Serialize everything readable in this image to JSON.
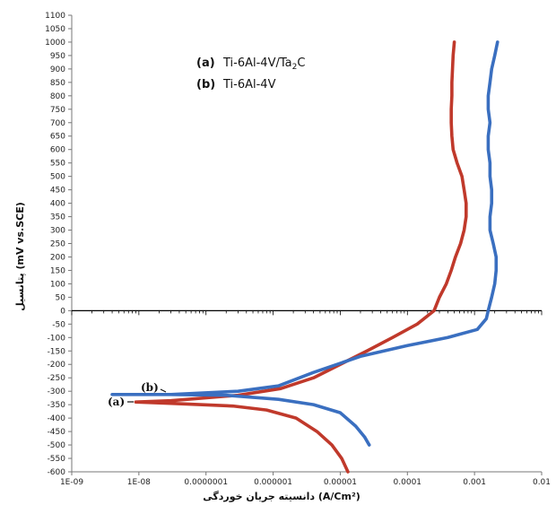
{
  "chart_data": {
    "type": "line",
    "title": "",
    "xlabel": "دانسیته جریان خوردگی (A/Cm²)",
    "ylabel": "پتانسیل (mV vs.SCE)",
    "x_scale": "log",
    "xlim": [
      1e-09,
      0.01
    ],
    "ylim": [
      -600,
      1100
    ],
    "x_ticks": [
      1e-09,
      1e-08,
      1e-07,
      1e-06,
      1e-05,
      0.0001,
      0.001,
      0.01
    ],
    "x_tick_labels": [
      "1E-09",
      "1E-08",
      "0.0000001",
      "0.000001",
      "0.00001",
      "0.0001",
      "0.001",
      "0.01"
    ],
    "y_ticks": [
      -600,
      -550,
      -500,
      -450,
      -400,
      -350,
      -300,
      -250,
      -200,
      -150,
      -100,
      -50,
      0,
      50,
      100,
      150,
      200,
      250,
      300,
      350,
      400,
      450,
      500,
      550,
      600,
      650,
      700,
      750,
      800,
      850,
      900,
      950,
      1000,
      1050,
      1100
    ],
    "grid": false,
    "legend": {
      "position": "top-left",
      "entries": [
        {
          "letter": "(a)",
          "text": "Ti-6Al-4V/Ta",
          "sub": "2",
          "suffix": "C"
        },
        {
          "letter": "(b)",
          "text": "Ti-6Al-4V",
          "sub": "",
          "suffix": ""
        }
      ]
    },
    "annotations": [
      {
        "text": "(a)",
        "series": 0
      },
      {
        "text": "(b)",
        "series": 1
      }
    ],
    "series": [
      {
        "name": "(a) Ti-6Al-4V/Ta2C",
        "color": "#c0392b",
        "points": [
          [
            0.0005,
            1000
          ],
          [
            0.00048,
            950
          ],
          [
            0.00047,
            900
          ],
          [
            0.00046,
            850
          ],
          [
            0.00046,
            800
          ],
          [
            0.00045,
            750
          ],
          [
            0.00045,
            700
          ],
          [
            0.00046,
            650
          ],
          [
            0.00048,
            600
          ],
          [
            0.00055,
            550
          ],
          [
            0.00065,
            500
          ],
          [
            0.0007,
            450
          ],
          [
            0.00075,
            400
          ],
          [
            0.00075,
            350
          ],
          [
            0.0007,
            300
          ],
          [
            0.00062,
            250
          ],
          [
            0.00052,
            200
          ],
          [
            0.00045,
            150
          ],
          [
            0.00038,
            100
          ],
          [
            0.0003,
            50
          ],
          [
            0.00025,
            0
          ],
          [
            0.00014,
            -50
          ],
          [
            6e-05,
            -100
          ],
          [
            2.5e-05,
            -150
          ],
          [
            1e-05,
            -200
          ],
          [
            4e-06,
            -250
          ],
          [
            1.3e-06,
            -290
          ],
          [
            3e-07,
            -315
          ],
          [
            3e-08,
            -335
          ],
          [
            9e-09,
            -340
          ],
          [
            3e-08,
            -345
          ],
          [
            2.5e-07,
            -355
          ],
          [
            8e-07,
            -370
          ],
          [
            2.2e-06,
            -400
          ],
          [
            4.5e-06,
            -450
          ],
          [
            7.5e-06,
            -500
          ],
          [
            1.05e-05,
            -550
          ],
          [
            1.3e-05,
            -600
          ]
        ]
      },
      {
        "name": "(b) Ti-6Al-4V",
        "color": "#3a6fc0",
        "points": [
          [
            0.0022,
            1000
          ],
          [
            0.002,
            950
          ],
          [
            0.0018,
            900
          ],
          [
            0.0017,
            850
          ],
          [
            0.0016,
            800
          ],
          [
            0.0016,
            750
          ],
          [
            0.0017,
            700
          ],
          [
            0.0016,
            650
          ],
          [
            0.0016,
            600
          ],
          [
            0.0017,
            550
          ],
          [
            0.0017,
            500
          ],
          [
            0.0018,
            450
          ],
          [
            0.0018,
            400
          ],
          [
            0.0017,
            350
          ],
          [
            0.0017,
            300
          ],
          [
            0.0019,
            250
          ],
          [
            0.0021,
            200
          ],
          [
            0.0021,
            150
          ],
          [
            0.002,
            100
          ],
          [
            0.0018,
            50
          ],
          [
            0.0016,
            0
          ],
          [
            0.0015,
            -30
          ],
          [
            0.0011,
            -70
          ],
          [
            0.0004,
            -100
          ],
          [
            0.0001,
            -130
          ],
          [
            2e-05,
            -170
          ],
          [
            4e-06,
            -230
          ],
          [
            1.2e-06,
            -280
          ],
          [
            3e-07,
            -300
          ],
          [
            3e-08,
            -312
          ],
          [
            4e-09,
            -312
          ],
          [
            3e-08,
            -312
          ],
          [
            2e-07,
            -315
          ],
          [
            1.2e-06,
            -330
          ],
          [
            4e-06,
            -350
          ],
          [
            1e-05,
            -380
          ],
          [
            1.7e-05,
            -430
          ],
          [
            2.3e-05,
            -470
          ],
          [
            2.7e-05,
            -500
          ]
        ]
      }
    ]
  }
}
